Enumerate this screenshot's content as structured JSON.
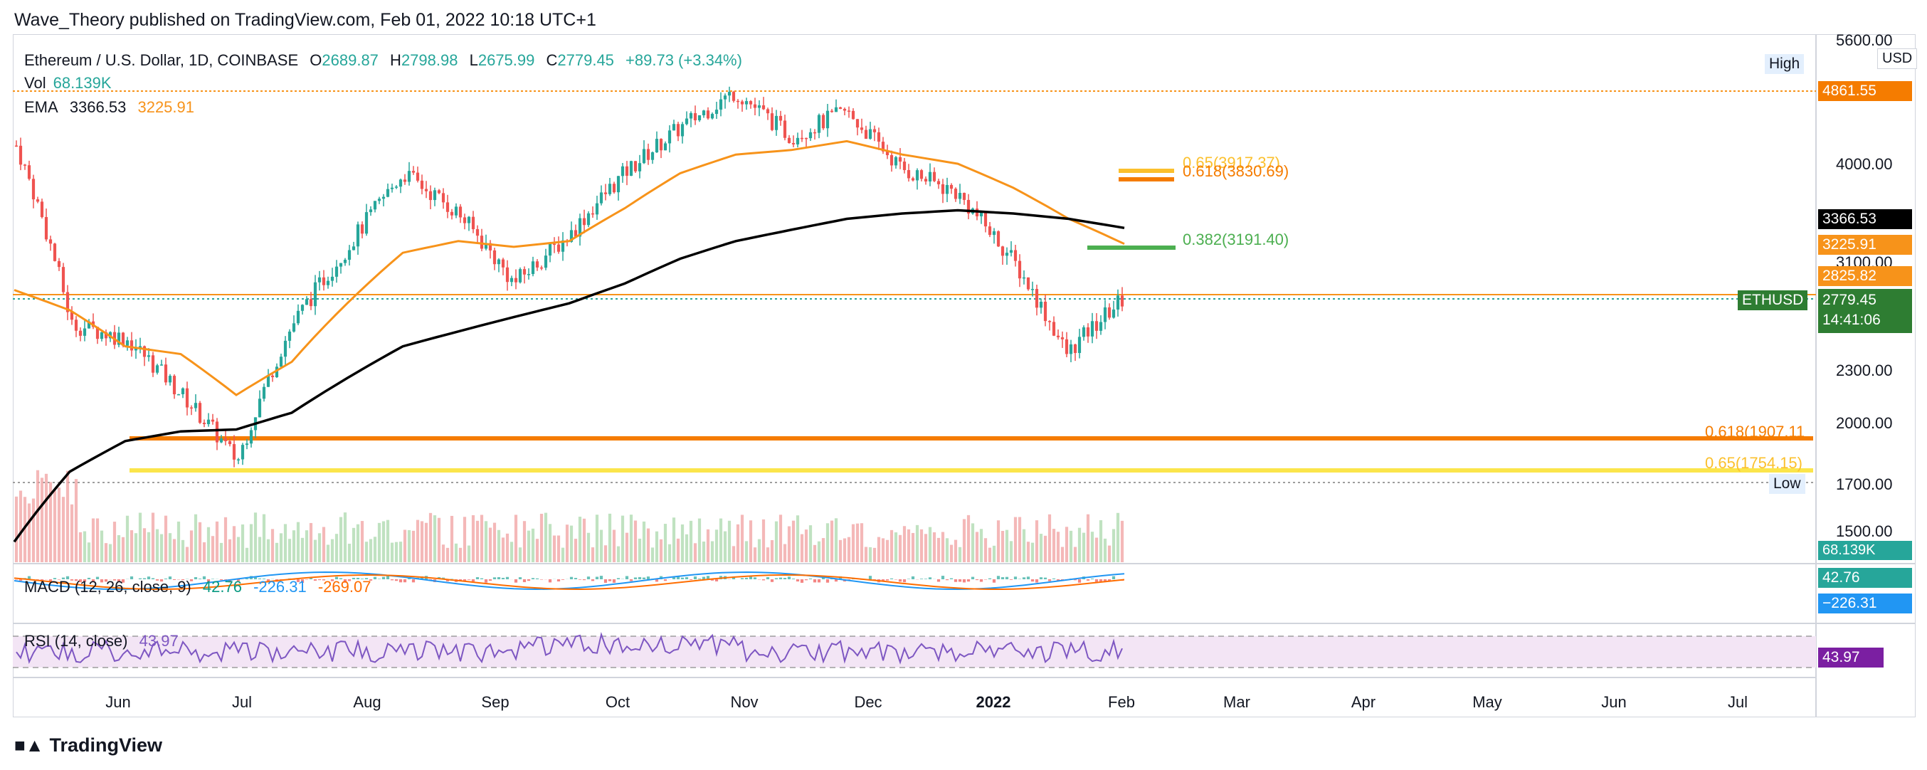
{
  "header": {
    "published": "Wave_Theory published on TradingView.com, Feb 01, 2022 10:18 UTC+1"
  },
  "legend": {
    "symbol": "Ethereum / U.S. Dollar, 1D, COINBASE",
    "open_label": "O",
    "open": "2689.87",
    "high_label": "H",
    "high": "2798.98",
    "low_label": "L",
    "low": "2675.99",
    "close_label": "C",
    "close": "2779.45",
    "change": "+89.73 (+3.34%)",
    "vol_label": "Vol",
    "vol": "68.139K",
    "ema_label": "EMA",
    "ema_200": "3366.53",
    "ema_50": "3225.91",
    "macd_label": "MACD (12, 26, close, 9)",
    "macd_hist": "42.76",
    "macd_line": "-226.31",
    "macd_signal": "-269.07",
    "rsi_label": "RSI (14, close)",
    "rsi": "43.97"
  },
  "price_axis": {
    "currency": "USD",
    "ticks": [
      "5600.00",
      "4000.00",
      "3100.00",
      "2300.00",
      "2000.00",
      "1700.00",
      "1500.00"
    ]
  },
  "price_labels": {
    "high_tag": "High",
    "high_value": "4861.55",
    "low_tag": "Low",
    "low_value": "1700.00",
    "ema200_value": "3366.53",
    "ema50_value": "3225.91",
    "level_value": "2825.82",
    "ethusd_tag": "ETHUSD",
    "last_price": "2779.45",
    "countdown": "14:41:06",
    "vol_value": "68.139K",
    "macd_hist_value": "42.76",
    "macd_value": "−226.31",
    "rsi_value": "43.97"
  },
  "fib_labels": {
    "f65_top": "0.65(3917.37)",
    "f618_top": "0.618(3830.69)",
    "f382": "0.382(3191.40)",
    "f618_low": "0.618(1907.11",
    "f65_low": "0.65(1754.15)"
  },
  "time_axis": [
    "Jun",
    "Jul",
    "Aug",
    "Sep",
    "Oct",
    "Nov",
    "Dec",
    "2022",
    "Feb",
    "Mar",
    "Apr",
    "May",
    "Jun",
    "Jul"
  ],
  "colors": {
    "up": "#26a69a",
    "down": "#ef5350",
    "ema50": "#f7931a",
    "ema200": "#000000",
    "fib618": "#f57c00",
    "fib65": "#fbc02d",
    "fib382": "#4caf50",
    "rsi": "#7e57c2"
  },
  "brand": "TradingView",
  "chart_data": {
    "type": "line",
    "title": "Ethereum / U.S. Dollar, 1D, COINBASE",
    "x": [
      "2021-05-15",
      "2021-06-01",
      "2021-06-15",
      "2021-07-01",
      "2021-07-20",
      "2021-08-01",
      "2021-08-15",
      "2021-09-01",
      "2021-09-07",
      "2021-09-21",
      "2021-10-01",
      "2021-10-15",
      "2021-11-01",
      "2021-11-10",
      "2021-11-20",
      "2021-12-01",
      "2021-12-15",
      "2022-01-01",
      "2022-01-10",
      "2022-01-22",
      "2022-02-01"
    ],
    "series": [
      {
        "name": "ETHUSD",
        "values": [
          4200,
          2600,
          2500,
          2150,
          1800,
          2600,
          3200,
          3900,
          3500,
          2900,
          3300,
          3900,
          4400,
          4850,
          4300,
          4600,
          3950,
          3700,
          3100,
          2400,
          2779
        ]
      },
      {
        "name": "EMA 200",
        "values": [
          1450,
          1750,
          1900,
          1950,
          1960,
          2050,
          2250,
          2450,
          2550,
          2650,
          2750,
          2900,
          3100,
          3250,
          3350,
          3450,
          3500,
          3530,
          3500,
          3450,
          3367
        ]
      },
      {
        "name": "EMA 50",
        "values": [
          2850,
          2700,
          2450,
          2400,
          2150,
          2350,
          2750,
          3150,
          3250,
          3200,
          3250,
          3550,
          3900,
          4100,
          4150,
          4250,
          4100,
          4000,
          3750,
          3450,
          3226
        ]
      }
    ],
    "horizontal_levels": [
      {
        "label": "High",
        "value": 4861.55
      },
      {
        "label": "0.65",
        "value": 3917.37
      },
      {
        "label": "0.618",
        "value": 3830.69
      },
      {
        "label": "0.382",
        "value": 3191.4
      },
      {
        "value": 2825.82
      },
      {
        "label": "0.618",
        "value": 1907.11
      },
      {
        "label": "0.65",
        "value": 1754.15
      },
      {
        "label": "Low",
        "value": 1700.0
      }
    ],
    "yscale": "log",
    "ylim": [
      1500,
      5600
    ],
    "indicators": {
      "volume": "68.139K",
      "macd": {
        "hist": 42.76,
        "macd": -226.31,
        "signal": -269.07
      },
      "rsi": 43.97
    }
  }
}
